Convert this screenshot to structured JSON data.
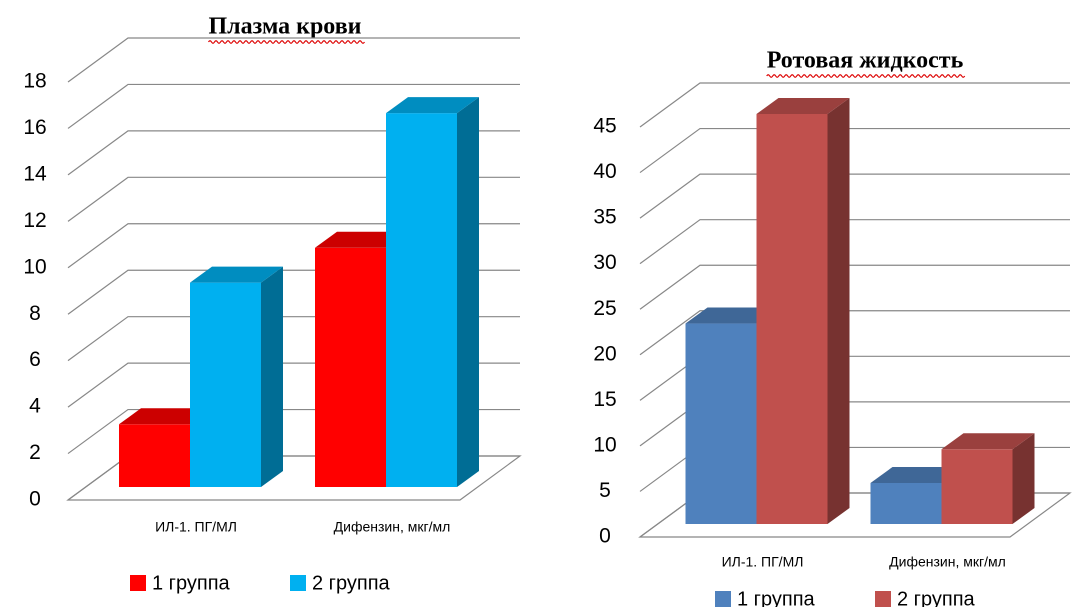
{
  "chart_data": [
    {
      "type": "bar3d",
      "title": "Плазма крови",
      "categories": [
        "ИЛ-1. ПГ/МЛ",
        "Дифензин, мкг/мл"
      ],
      "series": [
        {
          "name": "1 группа",
          "color": "#ff0000",
          "values": [
            2.7,
            10.3
          ]
        },
        {
          "name": "2 группа",
          "color": "#00b0f0",
          "values": [
            8.8,
            16.1
          ]
        }
      ],
      "ylim": [
        0,
        18
      ],
      "yticks": [
        0,
        2,
        4,
        6,
        8,
        10,
        12,
        14,
        16,
        18
      ],
      "grid": true,
      "legend": "bottom"
    },
    {
      "type": "bar3d",
      "title": "Ротовая жидкость",
      "categories": [
        "ИЛ-1. ПГ/МЛ",
        "Дифензин, мкг/мл"
      ],
      "series": [
        {
          "name": "1 группа",
          "color": "#4f81bd",
          "values": [
            22,
            4.5
          ]
        },
        {
          "name": "2 группа",
          "color": "#c0504d",
          "values": [
            45,
            8.2
          ]
        }
      ],
      "ylim": [
        0,
        45
      ],
      "yticks": [
        0,
        5,
        10,
        15,
        20,
        25,
        30,
        35,
        40,
        45
      ],
      "grid": true,
      "legend": "bottom"
    }
  ]
}
